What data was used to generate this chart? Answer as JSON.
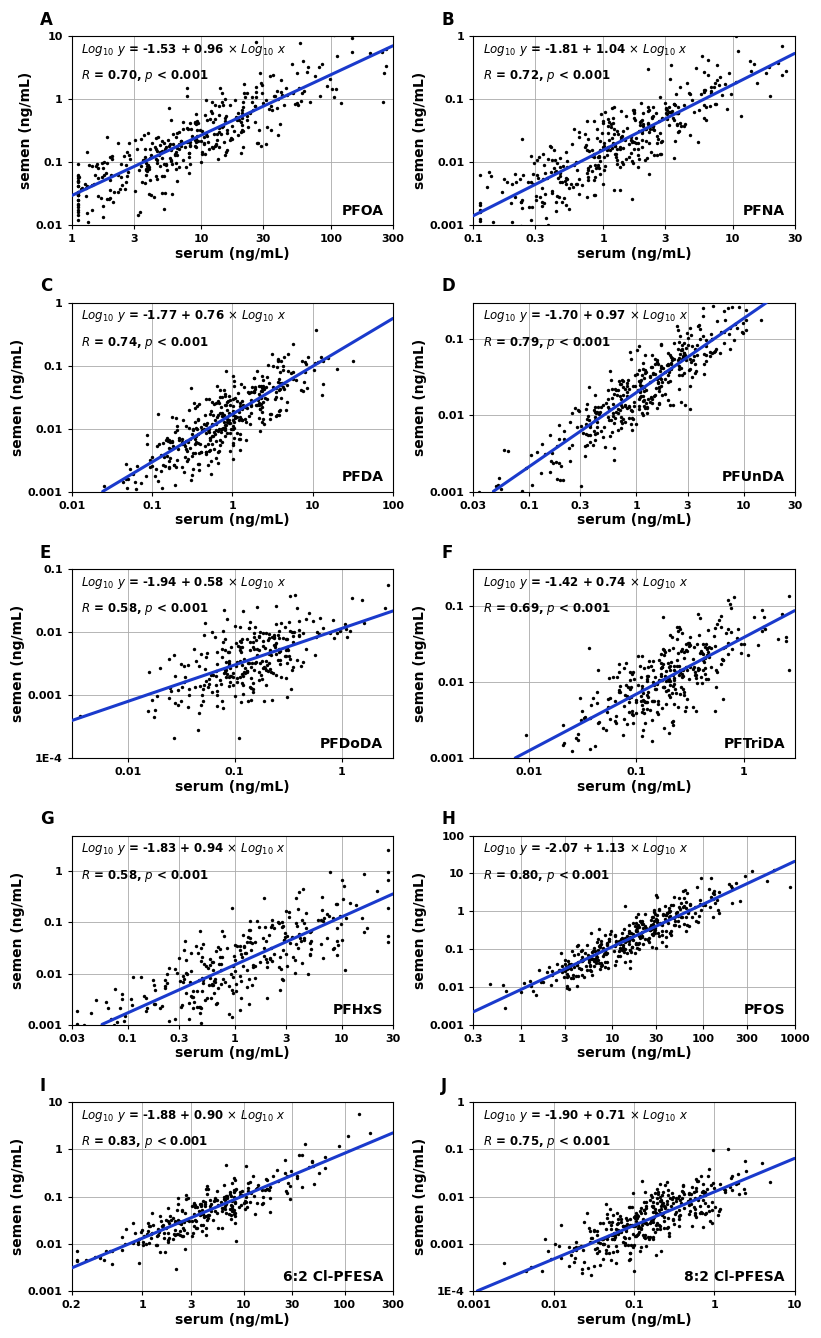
{
  "panels": [
    {
      "label": "A",
      "compound": "PFOA",
      "intercept": -1.53,
      "slope": 0.96,
      "R": 0.7,
      "xlim": [
        1,
        300
      ],
      "ylim": [
        0.01,
        10
      ],
      "xticks": [
        1,
        3,
        10,
        30,
        100,
        300
      ],
      "yticks": [
        0.01,
        0.1,
        1,
        10
      ],
      "log_x_center": 0.9,
      "log_x_std": 0.55,
      "n_points": 380,
      "noise_std": 0.28
    },
    {
      "label": "B",
      "compound": "PFNA",
      "intercept": -1.81,
      "slope": 1.04,
      "R": 0.72,
      "xlim": [
        0.1,
        30
      ],
      "ylim": [
        0.001,
        1
      ],
      "xticks": [
        0.1,
        0.3,
        1,
        3,
        10,
        30
      ],
      "yticks": [
        0.001,
        0.01,
        0.1,
        1
      ],
      "log_x_center": 0.1,
      "log_x_std": 0.5,
      "n_points": 380,
      "noise_std": 0.3
    },
    {
      "label": "C",
      "compound": "PFDA",
      "intercept": -1.77,
      "slope": 0.76,
      "R": 0.74,
      "xlim": [
        0.01,
        100
      ],
      "ylim": [
        0.001,
        1
      ],
      "xticks": [
        0.01,
        0.1,
        1,
        10,
        100
      ],
      "yticks": [
        0.001,
        0.01,
        0.1,
        1
      ],
      "log_x_center": -0.1,
      "log_x_std": 0.55,
      "n_points": 380,
      "noise_std": 0.28
    },
    {
      "label": "D",
      "compound": "PFUnDA",
      "intercept": -1.7,
      "slope": 0.97,
      "R": 0.79,
      "xlim": [
        0.03,
        30
      ],
      "ylim": [
        0.001,
        0.3
      ],
      "xticks": [
        0.03,
        0.1,
        0.3,
        1,
        3,
        10,
        30
      ],
      "yticks": [
        0.001,
        0.01,
        0.1
      ],
      "log_x_center": 0.05,
      "log_x_std": 0.55,
      "n_points": 380,
      "noise_std": 0.24
    },
    {
      "label": "E",
      "compound": "PFDoDA",
      "intercept": -1.94,
      "slope": 0.58,
      "R": 0.58,
      "xlim": [
        0.003,
        3
      ],
      "ylim": [
        0.0001,
        0.1
      ],
      "xticks": [
        0.01,
        0.1,
        1
      ],
      "yticks": [
        0.0001,
        0.001,
        0.01,
        0.1
      ],
      "log_x_center": -0.9,
      "log_x_std": 0.45,
      "n_points": 280,
      "noise_std": 0.35
    },
    {
      "label": "F",
      "compound": "PFTriDA",
      "intercept": -1.42,
      "slope": 0.74,
      "R": 0.69,
      "xlim": [
        0.003,
        3
      ],
      "ylim": [
        0.001,
        0.3
      ],
      "xticks": [
        0.01,
        0.1,
        1
      ],
      "yticks": [
        0.001,
        0.01,
        0.1
      ],
      "log_x_center": -0.7,
      "log_x_std": 0.45,
      "n_points": 320,
      "noise_std": 0.3
    },
    {
      "label": "G",
      "compound": "PFHxS",
      "intercept": -1.83,
      "slope": 0.94,
      "R": 0.58,
      "xlim": [
        0.03,
        30
      ],
      "ylim": [
        0.001,
        5
      ],
      "xticks": [
        0.03,
        0.1,
        0.3,
        1,
        3,
        10,
        30
      ],
      "yticks": [
        0.001,
        0.01,
        0.1,
        1
      ],
      "log_x_center": 0.0,
      "log_x_std": 0.6,
      "n_points": 300,
      "noise_std": 0.42
    },
    {
      "label": "H",
      "compound": "PFOS",
      "intercept": -2.07,
      "slope": 1.13,
      "R": 0.8,
      "xlim": [
        0.3,
        1000
      ],
      "ylim": [
        0.001,
        100
      ],
      "xticks": [
        0.3,
        1,
        3,
        10,
        30,
        100,
        300,
        1000
      ],
      "yticks": [
        0.001,
        0.01,
        0.1,
        1,
        10,
        100
      ],
      "log_x_center": 1.2,
      "log_x_std": 0.55,
      "n_points": 380,
      "noise_std": 0.28
    },
    {
      "label": "I",
      "compound": "6:2 Cl-PFESA",
      "intercept": -1.88,
      "slope": 0.9,
      "R": 0.83,
      "xlim": [
        0.2,
        300
      ],
      "ylim": [
        0.001,
        10
      ],
      "xticks": [
        0.2,
        1,
        3,
        10,
        30,
        100,
        300
      ],
      "yticks": [
        0.001,
        0.01,
        0.1,
        1,
        10
      ],
      "log_x_center": 0.7,
      "log_x_std": 0.55,
      "n_points": 280,
      "noise_std": 0.24
    },
    {
      "label": "J",
      "compound": "8:2 Cl-PFESA",
      "intercept": -1.9,
      "slope": 0.71,
      "R": 0.75,
      "xlim": [
        0.001,
        10
      ],
      "ylim": [
        0.0001,
        1
      ],
      "xticks": [
        0.001,
        0.01,
        0.1,
        1,
        10
      ],
      "yticks": [
        0.0001,
        0.001,
        0.01,
        0.1,
        1
      ],
      "log_x_center": -0.8,
      "log_x_std": 0.55,
      "n_points": 360,
      "noise_std": 0.3
    }
  ],
  "line_color": "#1a3acc",
  "dot_color": "#000000",
  "dot_size": 6,
  "line_width": 2.2,
  "font_size_label": 10,
  "font_size_eq": 8.5,
  "font_size_compound": 10,
  "font_size_axis": 8,
  "font_size_panel_label": 12
}
